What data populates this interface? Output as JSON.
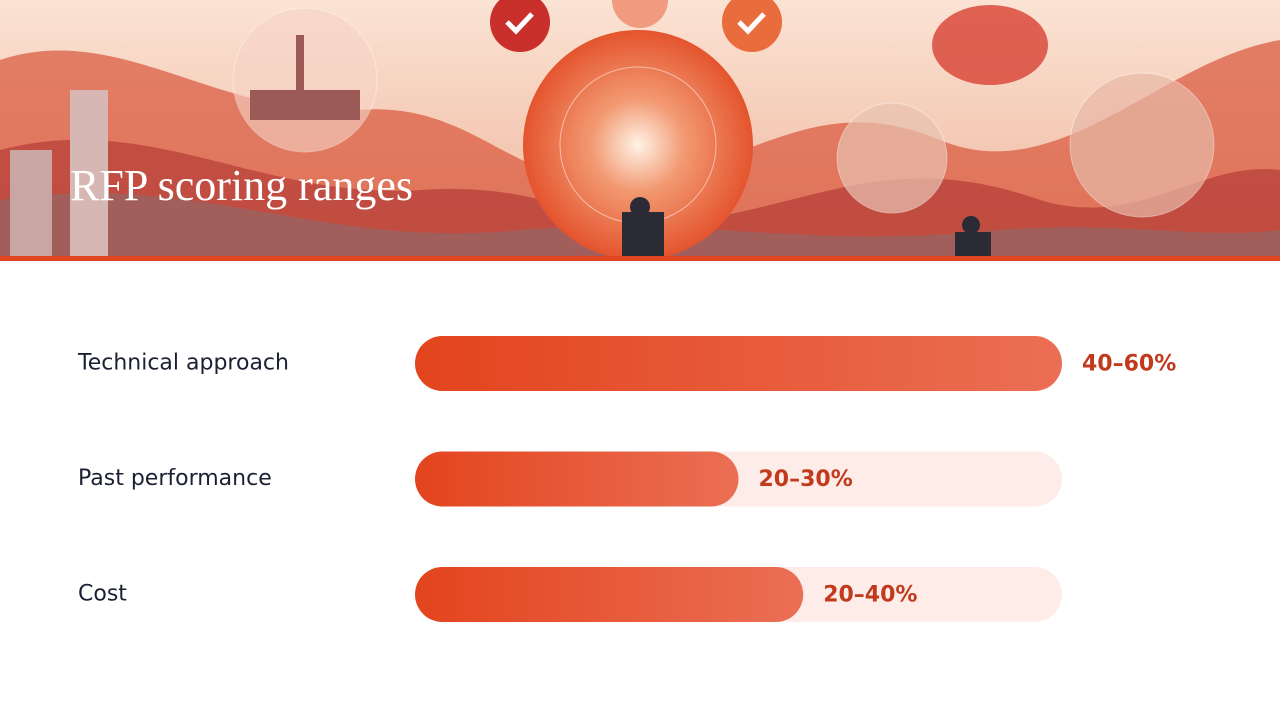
{
  "chart_data": {
    "type": "bar",
    "title": "RFP scoring ranges",
    "categories": [
      "Technical approach",
      "Past performance",
      "Cost"
    ],
    "values": [
      [
        40,
        60
      ],
      [
        20,
        30
      ],
      [
        20,
        40
      ]
    ],
    "value_labels": [
      "40–60%",
      "20–30%",
      "20–40%"
    ],
    "xlim": [
      0,
      50
    ]
  }
}
